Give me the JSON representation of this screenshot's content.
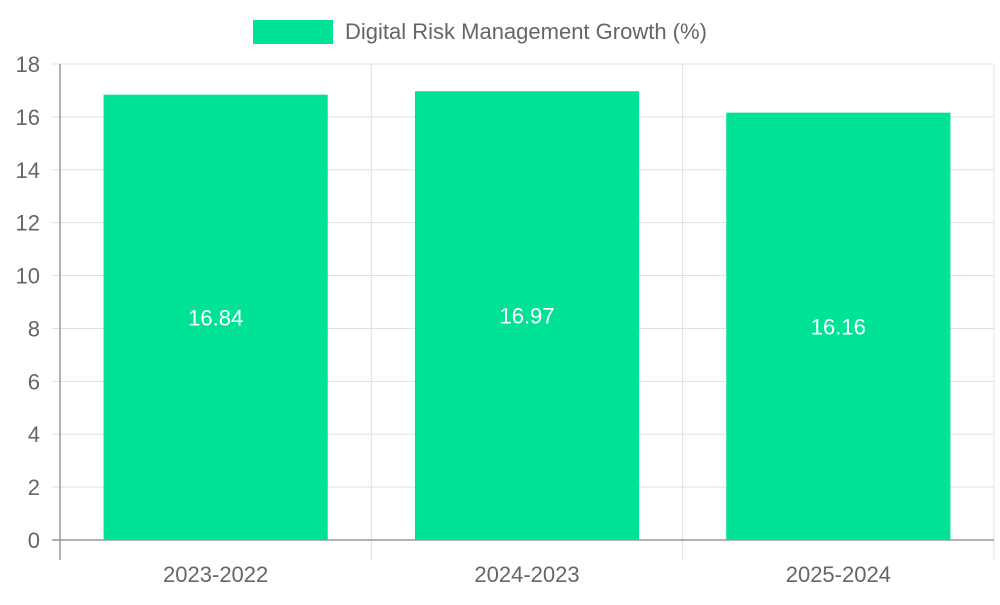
{
  "chart_data": {
    "type": "bar",
    "categories": [
      "2023-2022",
      "2024-2023",
      "2025-2024"
    ],
    "series": [
      {
        "name": "Digital Risk Management Growth (%)",
        "values": [
          16.84,
          16.97,
          16.16
        ],
        "color": "#00e396"
      }
    ],
    "data_labels": [
      "16.84",
      "16.97",
      "16.16"
    ],
    "ylim": [
      0,
      18
    ],
    "yticks": [
      0,
      2,
      4,
      6,
      8,
      10,
      12,
      14,
      16,
      18
    ],
    "grid": true,
    "legend_position": "top-center",
    "title": "",
    "xlabel": "",
    "ylabel": ""
  },
  "colors": {
    "bar": "#00e396",
    "grid": "#e0e0e0",
    "axis": "#999999",
    "tick_text": "#666666",
    "data_label": "#ffffff"
  }
}
